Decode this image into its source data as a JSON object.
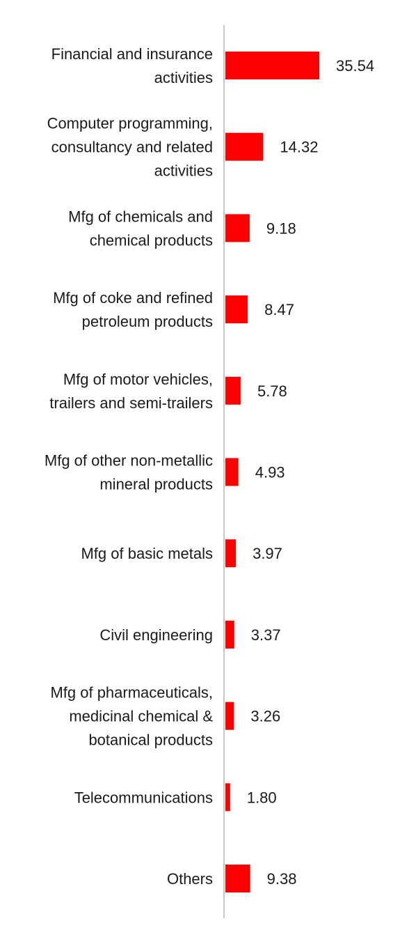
{
  "chart_data": {
    "type": "bar",
    "orientation": "horizontal",
    "categories": [
      [
        "Financial and insurance",
        "activities"
      ],
      [
        "Computer programming,",
        "consultancy and related",
        "activities"
      ],
      [
        "Mfg of chemicals and",
        "chemical products"
      ],
      [
        "Mfg of coke and refined",
        "petroleum products"
      ],
      [
        "Mfg of motor vehicles,",
        "trailers and semi-trailers"
      ],
      [
        "Mfg of other non-metallic",
        "mineral products"
      ],
      [
        "Mfg of basic metals"
      ],
      [
        "Civil engineering"
      ],
      [
        "Mfg of pharmaceuticals,",
        "medicinal chemical &",
        "botanical products"
      ],
      [
        "Telecommunications"
      ],
      [
        "Others"
      ]
    ],
    "values": [
      35.54,
      14.32,
      9.18,
      8.47,
      5.78,
      4.93,
      3.97,
      3.37,
      3.26,
      1.8,
      9.38
    ],
    "value_labels": [
      "35.54",
      "14.32",
      "9.18",
      "8.47",
      "5.78",
      "4.93",
      "3.97",
      "3.37",
      "3.26",
      "1.80",
      "9.38"
    ],
    "title": "",
    "xlabel": "",
    "ylabel": "",
    "xlim": [
      0,
      40
    ],
    "grid": false,
    "legend": "none",
    "bar_color": "#ff0000",
    "axis_color": "#c8c8c8"
  }
}
